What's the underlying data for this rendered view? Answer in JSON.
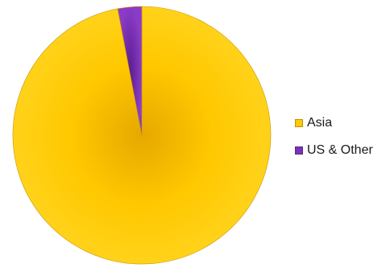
{
  "chart_data": {
    "type": "pie",
    "title": "",
    "categories": [
      "Asia",
      "US & Other"
    ],
    "values": [
      97,
      3
    ],
    "colors": [
      "#FFC800",
      "#7A32B4"
    ],
    "legend_position": "right",
    "data_labels": false
  }
}
